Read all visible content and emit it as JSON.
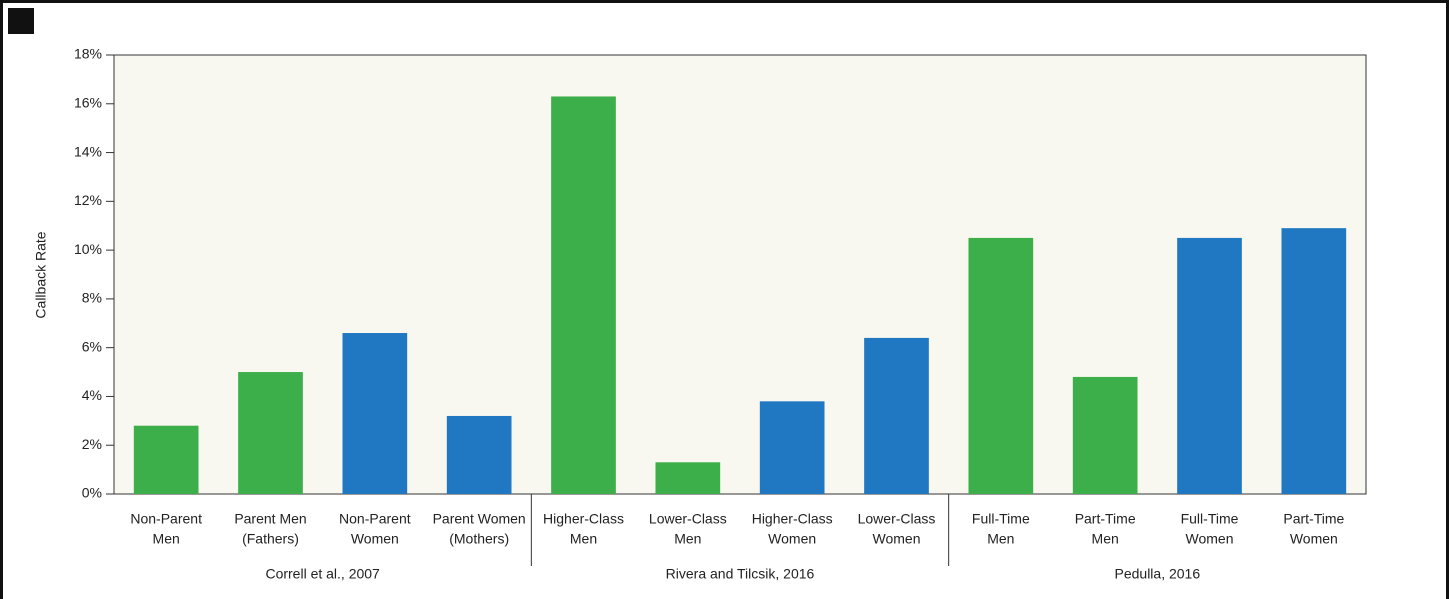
{
  "chart_data": {
    "type": "bar",
    "y_label": "Callback Rate",
    "ylim": [
      0,
      18
    ],
    "yticks": [
      {
        "value": 0,
        "label": "0%"
      },
      {
        "value": 2,
        "label": "2%"
      },
      {
        "value": 4,
        "label": "4%"
      },
      {
        "value": 6,
        "label": "6%"
      },
      {
        "value": 8,
        "label": "8%"
      },
      {
        "value": 10,
        "label": "10%"
      },
      {
        "value": 12,
        "label": "12%"
      },
      {
        "value": 14,
        "label": "14%"
      },
      {
        "value": 16,
        "label": "16%"
      },
      {
        "value": 18,
        "label": "18%"
      }
    ],
    "groups": [
      {
        "label": "Correll et al., 2007",
        "categories": [
          [
            "Non-Parent",
            "Men"
          ],
          [
            "Parent Men",
            "(Fathers)"
          ],
          [
            "Non-Parent",
            "Women"
          ],
          [
            "Parent Women",
            "(Mothers)"
          ]
        ],
        "values": [
          2.8,
          5.0,
          6.6,
          3.2
        ],
        "colors": [
          "#3daf4a",
          "#3daf4a",
          "#1f78c1",
          "#1f78c1"
        ]
      },
      {
        "label": "Rivera and Tilcsik, 2016",
        "categories": [
          [
            "Higher-Class",
            "Men"
          ],
          [
            "Lower-Class",
            "Men"
          ],
          [
            "Higher-Class",
            "Women"
          ],
          [
            "Lower-Class",
            "Women"
          ]
        ],
        "values": [
          16.3,
          1.3,
          3.8,
          6.4
        ],
        "colors": [
          "#3daf4a",
          "#3daf4a",
          "#1f78c1",
          "#1f78c1"
        ]
      },
      {
        "label": "Pedulla, 2016",
        "categories": [
          [
            "Full-Time",
            "Men"
          ],
          [
            "Part-Time",
            "Men"
          ],
          [
            "Full-Time",
            "Women"
          ],
          [
            "Part-Time",
            "Women"
          ]
        ],
        "values": [
          10.5,
          4.8,
          10.5,
          10.9
        ],
        "colors": [
          "#3daf4a",
          "#3daf4a",
          "#1f78c1",
          "#1f78c1"
        ]
      }
    ],
    "plot_background": "#f9f8f0"
  }
}
